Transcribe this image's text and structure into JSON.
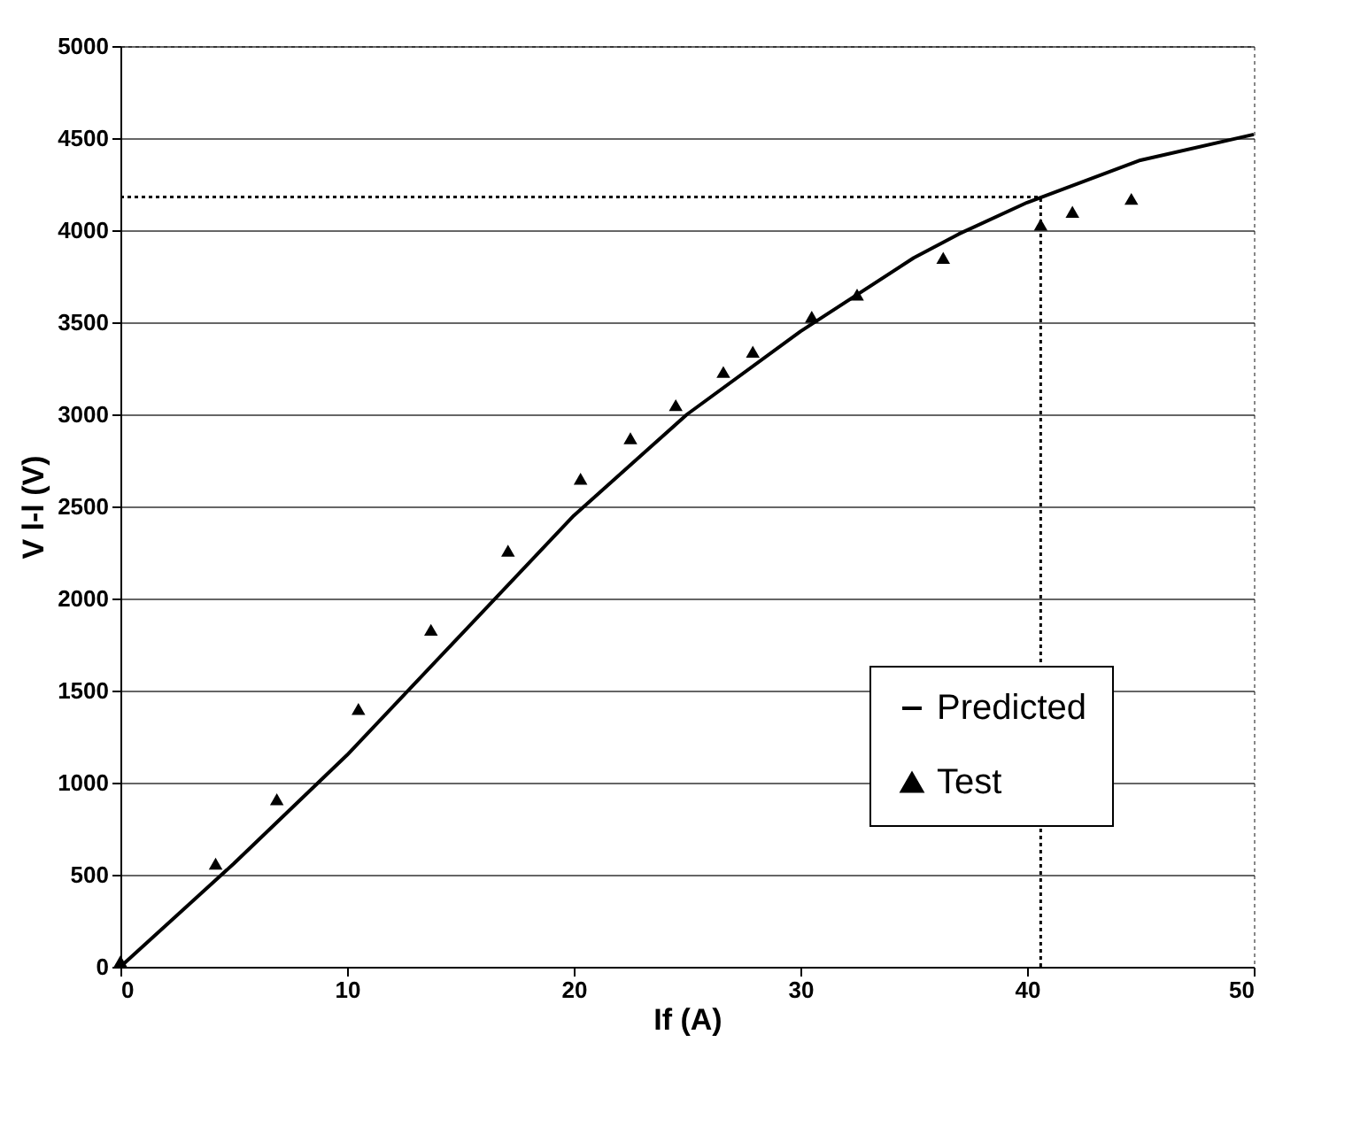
{
  "chart_data": {
    "type": "line",
    "xlabel": "If (A)",
    "ylabel": "V l-l (V)",
    "xlim": [
      0,
      50
    ],
    "xticks": [
      0,
      10,
      20,
      30,
      40,
      50
    ],
    "ylim": [
      0,
      5000
    ],
    "yticks": [
      0,
      500,
      1000,
      1500,
      2000,
      2500,
      3000,
      3500,
      4000,
      4500,
      5000
    ],
    "grid": "y",
    "legend": "bottom right",
    "series": [
      {
        "name": "Predicted",
        "type": "line",
        "color": "#000000",
        "marker": "none",
        "line_style": "solid",
        "x": [
          0,
          5,
          10,
          15,
          20,
          25,
          30,
          35,
          37,
          40,
          45,
          50
        ],
        "values": [
          0,
          560,
          1150,
          1800,
          2450,
          3000,
          3450,
          3850,
          3980,
          4150,
          4380,
          4520
        ]
      },
      {
        "name": "Test",
        "type": "scatter",
        "color": "#000000",
        "marker": "triangle",
        "x": [
          0,
          4.2,
          6.9,
          10.5,
          13.7,
          17.1,
          20.3,
          22.5,
          24.5,
          26.6,
          27.9,
          30.5,
          32.5,
          36.3,
          40.6,
          42.0,
          44.6
        ],
        "values": [
          30,
          560,
          910,
          1400,
          1830,
          2260,
          2650,
          2870,
          3050,
          3230,
          3340,
          3530,
          3650,
          3850,
          4030,
          4100,
          4170
        ]
      }
    ],
    "ref_lines": [
      {
        "axis": "y",
        "value": 4180,
        "line_style": "dotted",
        "color": "#000000"
      },
      {
        "axis": "x",
        "value": 40.6,
        "line_style": "dotted",
        "color": "#000000"
      }
    ]
  }
}
